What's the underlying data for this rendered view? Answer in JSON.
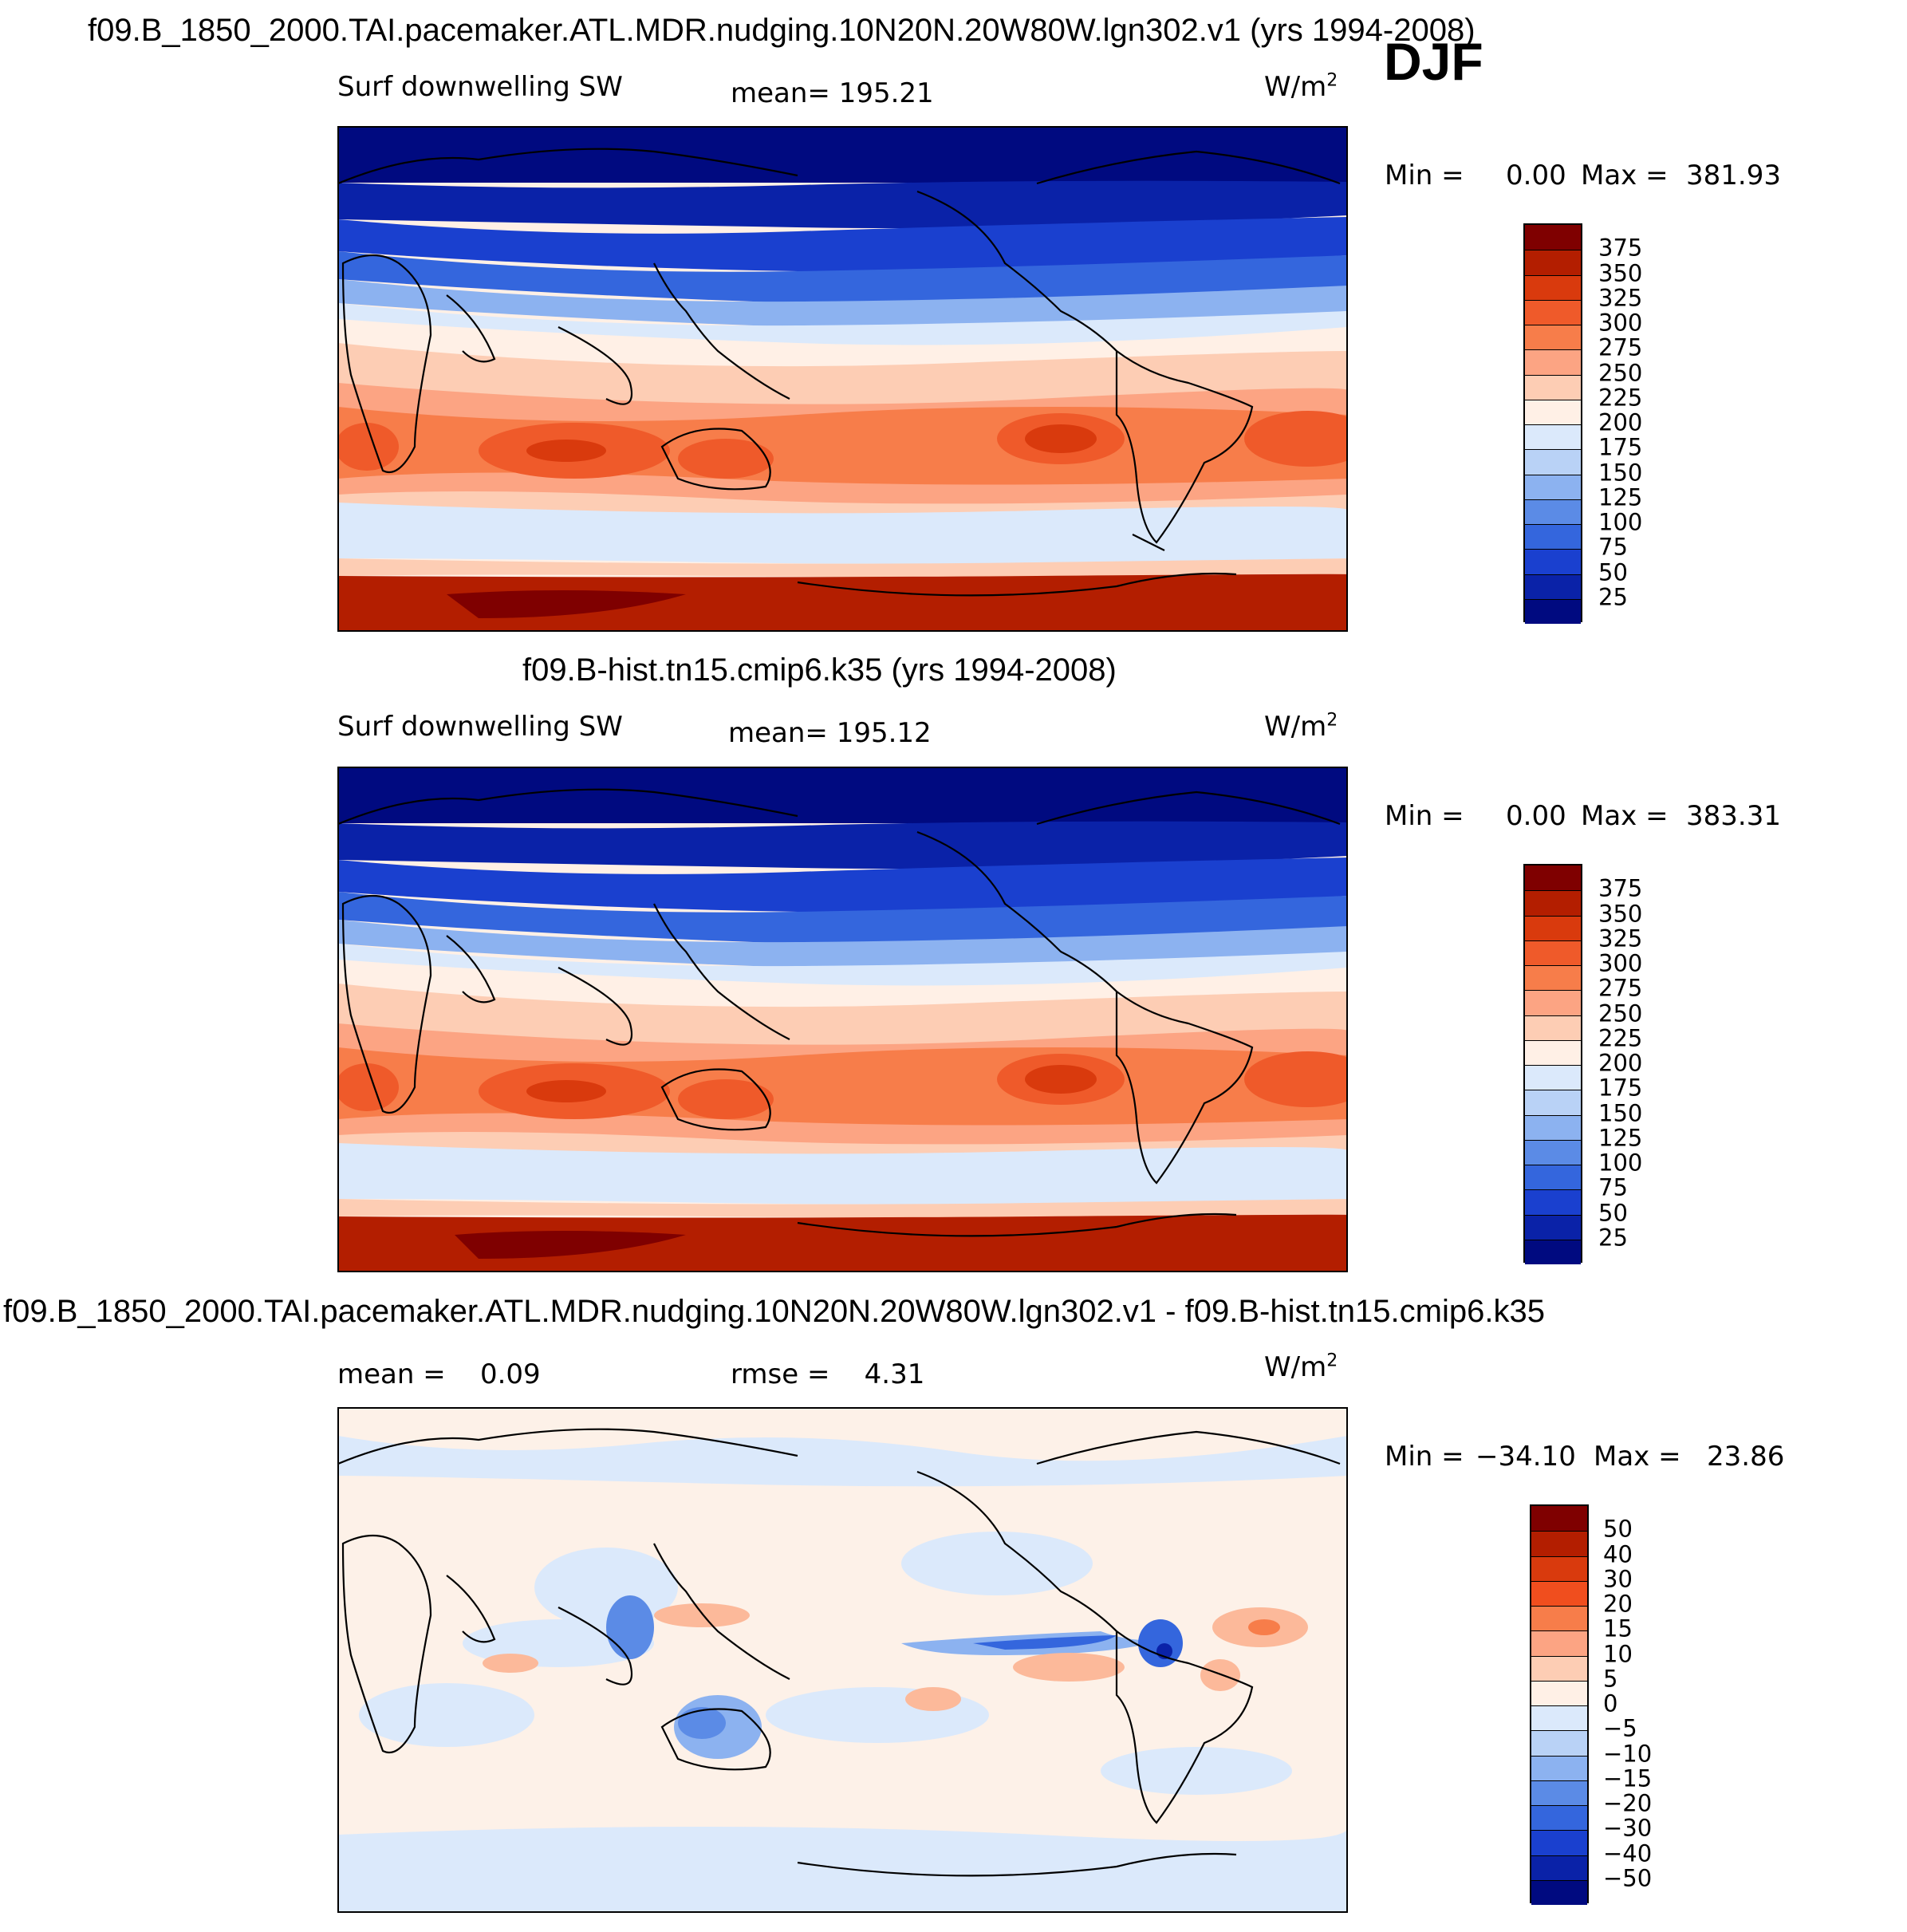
{
  "header": {
    "season": "DJF"
  },
  "panels": [
    {
      "title": "f09.B_1850_2000.TAI.pacemaker.ATL.MDR.nudging.10N20N.20W80W.lgn302.v1 (yrs 1994-2008)",
      "left_label": "Surf downwelling SW",
      "center_label": "mean= 195.21",
      "units_base": "W/m",
      "units_sup": "2",
      "min_label": "Min =",
      "min_value": "0.00",
      "max_label": "Max =",
      "max_value": "381.93",
      "colorbar_labels": [
        "375",
        "350",
        "325",
        "300",
        "275",
        "250",
        "225",
        "200",
        "175",
        "150",
        "125",
        "100",
        "75",
        "50",
        "25"
      ]
    },
    {
      "title": "f09.B-hist.tn15.cmip6.k35 (yrs 1994-2008)",
      "left_label": "Surf downwelling SW",
      "center_label": "mean= 195.12",
      "units_base": "W/m",
      "units_sup": "2",
      "min_label": "Min =",
      "min_value": "0.00",
      "max_label": "Max =",
      "max_value": "383.31",
      "colorbar_labels": [
        "375",
        "350",
        "325",
        "300",
        "275",
        "250",
        "225",
        "200",
        "175",
        "150",
        "125",
        "100",
        "75",
        "50",
        "25"
      ]
    },
    {
      "title": "f09.B_1850_2000.TAI.pacemaker.ATL.MDR.nudging.10N20N.20W80W.lgn302.v1 - f09.B-hist.tn15.cmip6.k35",
      "left_label": "mean =    0.09",
      "center_label": "rmse =    4.31",
      "units_base": "W/m",
      "units_sup": "2",
      "min_label": "Min =",
      "min_value": "−34.10",
      "max_label": "Max =",
      "max_value": "23.86",
      "colorbar_labels": [
        "50",
        "40",
        "30",
        "20",
        "15",
        "10",
        "5",
        "0",
        "−5",
        "−10",
        "−15",
        "−20",
        "−30",
        "−40",
        "−50"
      ]
    }
  ],
  "colors": {
    "abs_scale": [
      "#7f0000",
      "#b31e00",
      "#d93a0d",
      "#ef5a2a",
      "#f77d4a",
      "#fca483",
      "#fdcdb4",
      "#fff0e6",
      "#dbe9fb",
      "#b9d2f6",
      "#8cb2f0",
      "#5b8be6",
      "#3466dd",
      "#1a40cf",
      "#0a22a8",
      "#000a80"
    ],
    "diff_scale": [
      "#7f0000",
      "#b31e00",
      "#d93a0d",
      "#f04e1e",
      "#f77d4a",
      "#fca483",
      "#fdcdb4",
      "#fff0e6",
      "#dbe9fb",
      "#b9d2f6",
      "#8cb2f0",
      "#5b8be6",
      "#3466dd",
      "#1a40cf",
      "#0a22a8",
      "#000a80"
    ]
  }
}
